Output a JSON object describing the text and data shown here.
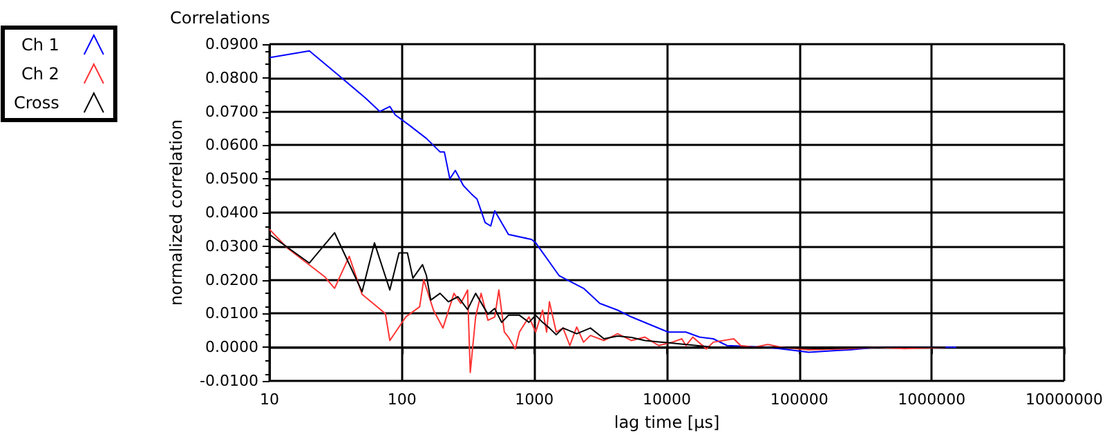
{
  "chart_data": {
    "type": "line",
    "title": "Correlations",
    "xlabel": "lag time [µs]",
    "ylabel": "normalized correlation",
    "log": "x",
    "grid": true,
    "legend": "top left",
    "marker": "none",
    "line_style": "solid",
    "xlim": [
      10,
      10000000
    ],
    "xticks": [
      10,
      100,
      1000,
      10000,
      100000,
      1000000,
      10000000
    ],
    "ylim": [
      -0.01,
      0.09
    ],
    "yticks": [
      {
        "value": -0.01,
        "label": "-0.0100"
      },
      {
        "value": 0,
        "label": "0.0000"
      },
      {
        "value": 0.01,
        "label": "0.0100"
      },
      {
        "value": 0.02,
        "label": "0.0200"
      },
      {
        "value": 0.03,
        "label": "0.0300"
      },
      {
        "value": 0.04,
        "label": "0.0400"
      },
      {
        "value": 0.05,
        "label": "0.0500"
      },
      {
        "value": 0.06,
        "label": "0.0600"
      },
      {
        "value": 0.07,
        "label": "0.0700"
      },
      {
        "value": 0.08,
        "label": "0.0800"
      },
      {
        "value": 0.09,
        "label": "0.0900"
      }
    ],
    "series": [
      {
        "name": "Ch 1",
        "color": "#0000ff",
        "x": [
          10,
          20,
          35,
          53,
          68,
          81,
          89,
          113,
          153,
          194,
          209,
          230,
          253,
          291,
          335,
          369,
          425,
          468,
          502,
          637,
          953,
          1023,
          1534,
          1767,
          2350,
          3124,
          4256,
          5397,
          7704,
          10230,
          13930,
          17660,
          22440,
          28440,
          57940,
          93110,
          118000,
          189700,
          240400,
          387000,
          622000,
          952000,
          1535000
        ],
        "values": [
          0.086,
          0.088,
          0.08,
          0.074,
          0.07,
          0.0715,
          0.069,
          0.066,
          0.062,
          0.058,
          0.058,
          0.05,
          0.0525,
          0.048,
          0.0455,
          0.044,
          0.037,
          0.036,
          0.0405,
          0.0335,
          0.032,
          0.031,
          0.0213,
          0.02,
          0.0175,
          0.013,
          0.011,
          0.009,
          0.0065,
          0.0045,
          0.0045,
          0.003,
          0.0025,
          0.0005,
          0,
          -0.001,
          -0.0015,
          -0.001,
          -0.0008,
          0,
          0,
          0,
          0
        ]
      },
      {
        "name": "Ch 2",
        "color": "#ff3333",
        "x": [
          10,
          13.6,
          26,
          31,
          40,
          50,
          75,
          81,
          107,
          136,
          146,
          173,
          204,
          247,
          278,
          313,
          328,
          360,
          396,
          446,
          502,
          539,
          593,
          637,
          718,
          771,
          910,
          1023,
          1153,
          1238,
          1298,
          1462,
          1645,
          1852,
          2087,
          2350,
          2649,
          3357,
          4256,
          5397,
          6839,
          8670,
          10990,
          12980,
          13930,
          15700,
          19910,
          22440,
          32010,
          36060,
          45710,
          57940,
          73450,
          118000,
          240400,
          387000,
          622000,
          1268000
        ],
        "values": [
          0.035,
          0.0295,
          0.021,
          0.0175,
          0.027,
          0.0157,
          0.01,
          0.002,
          0.009,
          0.012,
          0.02,
          0.011,
          0.0057,
          0.016,
          0.013,
          0.017,
          -0.0075,
          0.009,
          0.016,
          0.008,
          0.009,
          0.017,
          0.0045,
          0.003,
          -0.0005,
          0.0045,
          0.009,
          0.0045,
          0.011,
          0.0045,
          0.0135,
          0.0045,
          0.0057,
          0.0005,
          0.006,
          0.0015,
          0.0035,
          0.002,
          0.004,
          0.002,
          0.003,
          0.0005,
          0.0015,
          0.0025,
          0.0005,
          0.003,
          -0.0005,
          0.0015,
          0.0025,
          0.0005,
          0,
          0.0008,
          0,
          -0.0008,
          -0.0004,
          0,
          -0.0004,
          0
        ]
      },
      {
        "name": "Cross",
        "color": "#000000",
        "x": [
          10,
          20,
          31,
          50,
          62,
          81,
          95,
          110,
          121,
          143,
          153,
          165,
          194,
          224,
          265,
          313,
          360,
          446,
          502,
          566,
          637,
          771,
          910,
          1023,
          1153,
          1298,
          1462,
          1645,
          2087,
          2649,
          3357,
          4256,
          5397,
          6839,
          8670,
          10990,
          13930,
          22440,
          57940,
          149600,
          387000,
          1268000
        ],
        "values": [
          0.0335,
          0.025,
          0.034,
          0.0165,
          0.031,
          0.017,
          0.028,
          0.028,
          0.0205,
          0.0245,
          0.0213,
          0.014,
          0.016,
          0.0135,
          0.015,
          0.0112,
          0.016,
          0.0098,
          0.0115,
          0.0074,
          0.0095,
          0.0095,
          0.0074,
          0.0095,
          0.0074,
          0.0057,
          0.0037,
          0.0057,
          0.004,
          0.0057,
          0.0025,
          0.0033,
          0.0029,
          0.002,
          0.0016,
          0.0012,
          0.0008,
          0,
          0,
          -0.0004,
          0,
          0
        ]
      }
    ]
  }
}
